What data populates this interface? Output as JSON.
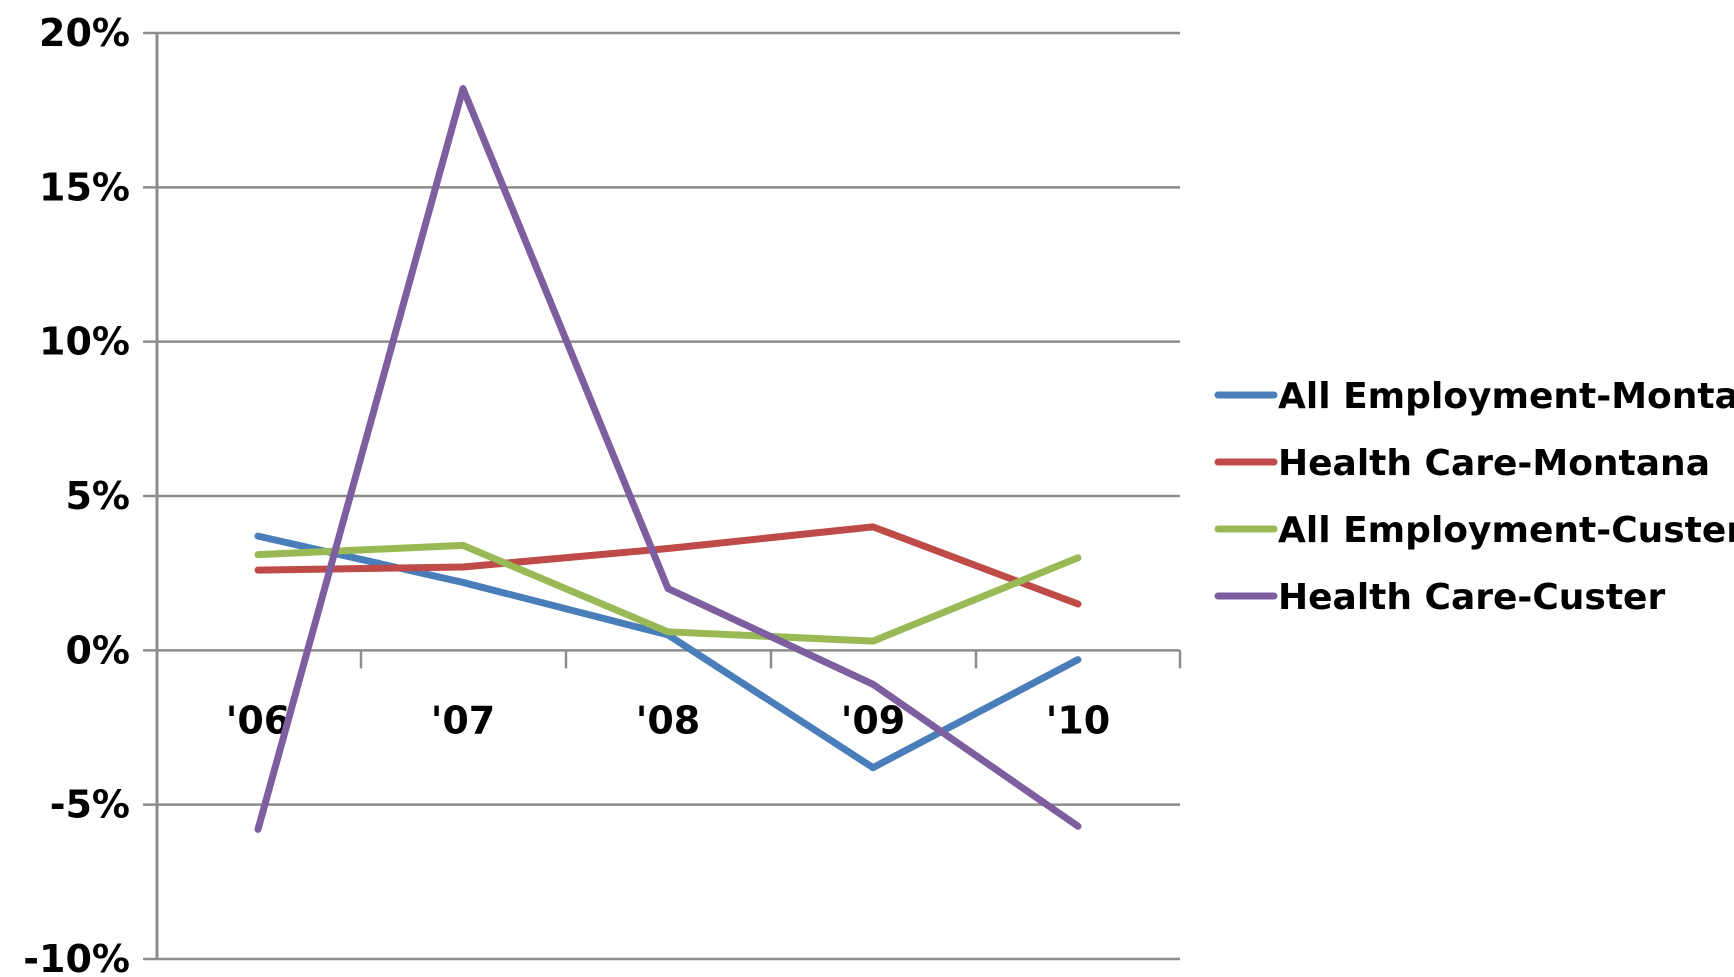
{
  "chart_data": {
    "type": "line",
    "title": "",
    "xlabel": "",
    "ylabel": "",
    "categories": [
      "'06",
      "'07",
      "'08",
      "'09",
      "'10"
    ],
    "ylim": [
      -10,
      20
    ],
    "yticks": [
      20,
      15,
      10,
      5,
      0,
      -5,
      -10
    ],
    "ytick_labels": [
      "20%",
      "15%",
      "10%",
      "5%",
      "0%",
      "-5%",
      "-10%"
    ],
    "grid": true,
    "legend_position": "right",
    "series": [
      {
        "name": "All Employment-Montana",
        "color": "#4a7ebb",
        "values": [
          3.7,
          2.2,
          0.5,
          -3.8,
          -0.3
        ]
      },
      {
        "name": "Health Care-Montana",
        "color": "#be4b48",
        "values": [
          2.6,
          2.7,
          3.3,
          4.0,
          1.5
        ]
      },
      {
        "name": "All Employment-Custer",
        "color": "#98b954",
        "values": [
          3.1,
          3.4,
          0.6,
          0.3,
          3.0
        ]
      },
      {
        "name": "Health Care-Custer",
        "color": "#7d5fa0",
        "values": [
          -5.8,
          18.2,
          2.0,
          -1.1,
          -5.7
        ]
      }
    ]
  }
}
